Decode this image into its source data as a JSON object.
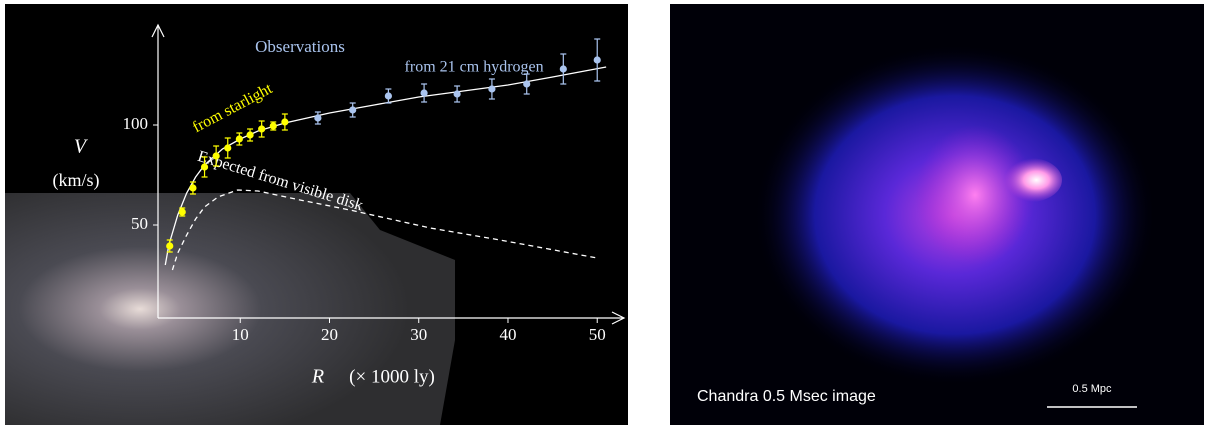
{
  "chart_data": {
    "type": "scatter",
    "annotation": "Observations",
    "y_label": "V",
    "y_unit": "(km/s)",
    "x_label": "R",
    "x_unit": "(× 1000 ly)",
    "xlim": [
      0,
      53
    ],
    "ylim": [
      0,
      150
    ],
    "xticks": [
      10,
      20,
      30,
      40,
      50
    ],
    "yticks": [
      50,
      100
    ],
    "series": [
      {
        "name": "from  starlight",
        "color": "#ffff00",
        "x": [
          2.1,
          3.5,
          4.7,
          6.0,
          7.3,
          8.6,
          9.9,
          11.1,
          12.4,
          13.7,
          15.0
        ],
        "values": [
          39.5,
          56.5,
          68.5,
          79,
          84.5,
          88.5,
          93,
          95,
          98,
          99.5,
          101.5
        ],
        "errors": [
          3,
          2,
          3,
          5,
          5,
          5,
          3,
          3,
          4,
          2,
          4
        ]
      },
      {
        "name": "from 21 cm hydrogen",
        "color": "#aac4ee",
        "x": [
          18.7,
          22.6,
          26.6,
          30.6,
          34.3,
          38.2,
          42.1,
          46.2,
          50.0
        ],
        "values": [
          103.5,
          107.5,
          114.5,
          116,
          115.5,
          118,
          120.5,
          128,
          132.5
        ],
        "errors": [
          3,
          3.5,
          3.5,
          4.5,
          4,
          5,
          5,
          7.5,
          10.5
        ]
      }
    ],
    "curves": [
      {
        "color": "#ffffff",
        "dashed": false,
        "x": [
          1.6,
          2,
          3,
          4,
          5,
          6,
          8,
          10,
          12,
          15,
          20,
          25,
          30,
          35,
          40,
          45,
          51
        ],
        "values": [
          30,
          40,
          55,
          66,
          74,
          80,
          88,
          93,
          97,
          101,
          106,
          110,
          114,
          117,
          120,
          124,
          129
        ]
      },
      {
        "name": "Expected from visible disk",
        "color": "#ffffff",
        "dashed": true,
        "x": [
          2.4,
          3,
          4,
          5,
          6,
          7.5,
          9.7,
          12,
          16.7,
          22.3,
          31.3,
          39.1,
          50
        ],
        "values": [
          27.5,
          36,
          45,
          53,
          59,
          64,
          67.5,
          67,
          62.5,
          57.5,
          48.5,
          42.5,
          33.5
        ]
      }
    ]
  },
  "image_panel": {
    "caption": "Chandra 0.5 Msec image",
    "scale_label": "0.5 Mpc"
  }
}
